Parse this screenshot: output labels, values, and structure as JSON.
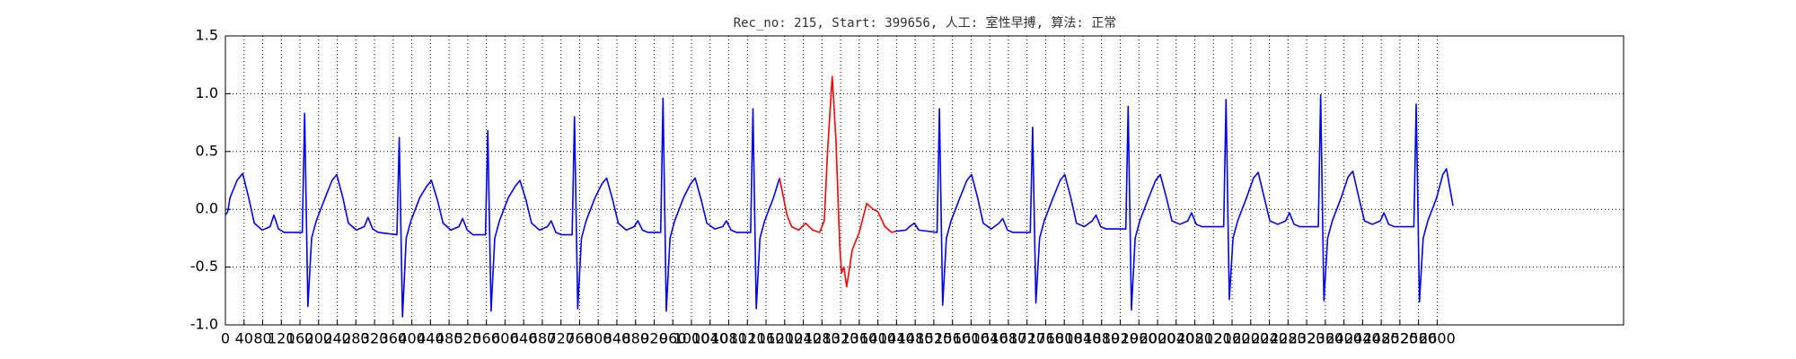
{
  "chart_data": {
    "type": "line",
    "title": "Rec_no: 215, Start: 399656, 人工: 室性早搏, 算法: 正常",
    "xlim": [
      0,
      3000
    ],
    "ylim": [
      -1,
      1.5
    ],
    "yticks": [
      {
        "value": -1,
        "label": "-1.0"
      },
      {
        "value": -0.5,
        "label": "-0.5"
      },
      {
        "value": 0,
        "label": "0.0"
      },
      {
        "value": 0.5,
        "label": "0.5"
      },
      {
        "value": 1,
        "label": "1.0"
      },
      {
        "value": 1.5,
        "label": "1.5"
      }
    ],
    "xticks": [
      0,
      40,
      80,
      120,
      160,
      200,
      240,
      280,
      320,
      360,
      400,
      440,
      480,
      520,
      560,
      600,
      640,
      680,
      720,
      760,
      800,
      840,
      880,
      920,
      960,
      1000,
      1040,
      1080,
      1120,
      1160,
      1200,
      1240,
      1280,
      1320,
      1360,
      1400,
      1440,
      1480,
      1520,
      1560,
      1600,
      1640,
      1680,
      1720,
      1760,
      1800,
      1840,
      1880,
      1920,
      1960,
      2000,
      2040,
      2080,
      2120,
      2160,
      2200,
      2240,
      2280,
      2320,
      2360,
      2400,
      2440,
      2480,
      2520,
      2560,
      2600
    ],
    "grid": true,
    "series": [
      {
        "color": "#0000ff",
        "x": [
          0,
          5,
          10,
          25,
          37,
          50,
          62,
          79,
          96,
          104,
          114,
          126,
          165,
          170,
          177,
          185,
          195,
          214,
          229,
          239,
          252,
          264,
          281,
          298,
          306,
          316,
          328,
          368,
          373,
          380,
          388,
          398,
          417,
          432,
          442,
          455,
          467,
          484,
          501,
          509,
          519,
          531,
          558,
          563,
          570,
          578,
          588,
          607,
          622,
          632,
          645,
          657,
          674,
          691,
          699,
          709,
          721,
          744,
          749,
          756,
          764,
          774,
          793,
          808,
          818,
          831,
          843,
          860,
          877,
          885,
          895,
          907,
          934,
          939,
          946,
          954,
          964,
          983,
          998,
          1008,
          1021,
          1033,
          1050,
          1067,
          1075,
          1085,
          1097,
          1127,
          1132,
          1139,
          1147,
          1157,
          1176,
          1189,
          1300,
          1438,
          1460,
          1468,
          1478,
          1488,
          1527,
          1532,
          1539,
          1547,
          1557,
          1576,
          1591,
          1601,
          1614,
          1626,
          1643,
          1660,
          1668,
          1678,
          1690,
          1727,
          1732,
          1739,
          1747,
          1757,
          1776,
          1791,
          1801,
          1814,
          1826,
          1843,
          1860,
          1868,
          1878,
          1890,
          1932,
          1937,
          1944,
          1952,
          1962,
          1981,
          1996,
          2006,
          2019,
          2031,
          2048,
          2065,
          2073,
          2083,
          2095,
          2142,
          2147,
          2154,
          2162,
          2172,
          2191,
          2206,
          2216,
          2229,
          2241,
          2258,
          2275,
          2283,
          2293,
          2305,
          2345,
          2350,
          2357,
          2365,
          2375,
          2394,
          2409,
          2419,
          2432,
          2444,
          2461,
          2478,
          2486,
          2496,
          2508,
          2550,
          2555,
          2562,
          2570,
          2580,
          2599,
          2612,
          2620,
          2634
        ],
        "values": [
          -0.05,
          -0.02,
          0.1,
          0.25,
          0.31,
          0.1,
          -0.12,
          -0.18,
          -0.15,
          -0.05,
          -0.17,
          -0.2,
          -0.2,
          0.83,
          -0.84,
          -0.25,
          -0.1,
          0.1,
          0.25,
          0.3,
          0.1,
          -0.12,
          -0.18,
          -0.15,
          -0.07,
          -0.17,
          -0.2,
          -0.22,
          0.62,
          -0.93,
          -0.25,
          -0.1,
          0.1,
          0.2,
          0.25,
          0.08,
          -0.12,
          -0.18,
          -0.15,
          -0.08,
          -0.18,
          -0.22,
          -0.22,
          0.68,
          -0.88,
          -0.25,
          -0.1,
          0.1,
          0.2,
          0.25,
          0.08,
          -0.12,
          -0.18,
          -0.15,
          -0.1,
          -0.2,
          -0.22,
          -0.22,
          0.8,
          -0.86,
          -0.25,
          -0.1,
          0.1,
          0.22,
          0.27,
          0.08,
          -0.12,
          -0.18,
          -0.15,
          -0.1,
          -0.18,
          -0.2,
          -0.2,
          0.96,
          -0.88,
          -0.25,
          -0.1,
          0.1,
          0.22,
          0.27,
          0.08,
          -0.12,
          -0.17,
          -0.15,
          -0.1,
          -0.18,
          -0.2,
          -0.2,
          0.87,
          -0.86,
          -0.25,
          -0.1,
          0.1,
          0.27,
          null,
          -0.19,
          -0.18,
          -0.15,
          -0.12,
          -0.18,
          -0.2,
          0.87,
          -0.83,
          -0.25,
          -0.1,
          0.1,
          0.25,
          0.3,
          0.1,
          -0.12,
          -0.17,
          -0.12,
          -0.08,
          -0.18,
          -0.2,
          -0.2,
          0.71,
          -0.81,
          -0.25,
          -0.1,
          0.1,
          0.25,
          0.3,
          0.1,
          -0.12,
          -0.15,
          -0.1,
          -0.05,
          -0.15,
          -0.17,
          -0.17,
          0.89,
          -0.87,
          -0.25,
          -0.1,
          0.1,
          0.25,
          0.3,
          0.1,
          -0.1,
          -0.13,
          -0.1,
          -0.03,
          -0.13,
          -0.15,
          -0.15,
          0.95,
          -0.78,
          -0.25,
          -0.1,
          0.1,
          0.27,
          0.32,
          0.1,
          -0.1,
          -0.13,
          -0.1,
          -0.03,
          -0.13,
          -0.15,
          -0.15,
          0.99,
          -0.79,
          -0.25,
          -0.1,
          0.1,
          0.28,
          0.33,
          0.1,
          -0.1,
          -0.13,
          -0.1,
          -0.03,
          -0.13,
          -0.15,
          -0.15,
          0.91,
          -0.8,
          -0.25,
          -0.1,
          0.1,
          0.3,
          0.35,
          0.03
        ]
      },
      {
        "color": "#ff0000",
        "x": [
          1189,
          1195,
          1205,
          1215,
          1230,
          1245,
          1260,
          1275,
          1285,
          1292,
          1302,
          1310,
          1318,
          1322,
          1327,
          1333,
          1345,
          1360,
          1376,
          1390,
          1400,
          1415,
          1430,
          1438
        ],
        "values": [
          0.27,
          0.15,
          -0.05,
          -0.15,
          -0.18,
          -0.12,
          -0.18,
          -0.2,
          -0.1,
          0.5,
          1.15,
          0.6,
          -0.3,
          -0.55,
          -0.5,
          -0.67,
          -0.35,
          -0.2,
          0.05,
          0.0,
          -0.02,
          -0.15,
          -0.2,
          -0.19
        ]
      }
    ]
  }
}
